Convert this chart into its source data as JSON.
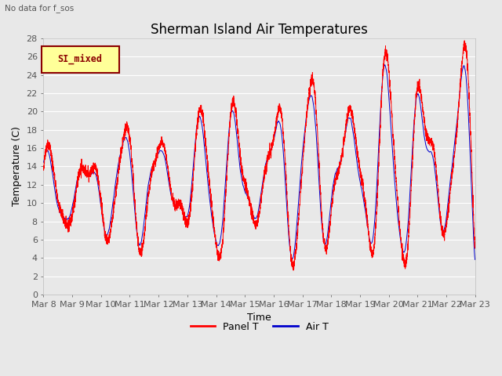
{
  "title": "Sherman Island Air Temperatures",
  "subtitle": "No data for f_sos",
  "ylabel": "Temperature (C)",
  "xlabel": "Time",
  "ylim": [
    0,
    28
  ],
  "yticks": [
    0,
    2,
    4,
    6,
    8,
    10,
    12,
    14,
    16,
    18,
    20,
    22,
    24,
    26,
    28
  ],
  "xtick_labels": [
    "Mar 8",
    "Mar 9",
    "Mar 10",
    "Mar 11",
    "Mar 12",
    "Mar 13",
    "Mar 14",
    "Mar 15",
    "Mar 16",
    "Mar 17",
    "Mar 18",
    "Mar 19",
    "Mar 20",
    "Mar 21",
    "Mar 22",
    "Mar 23"
  ],
  "panel_T_color": "#FF0000",
  "air_T_color": "#0000CC",
  "legend_label_panel": "Panel T",
  "legend_label_air": "Air T",
  "legend_box_color": "#FFFF99",
  "legend_box_edge_color": "#8B0000",
  "legend_box_text": "SI_mixed",
  "background_color": "#E8E8E8",
  "plot_bg_color": "#E8E8E8",
  "grid_color": "#FFFFFF",
  "title_fontsize": 12,
  "axis_fontsize": 9,
  "tick_fontsize": 8
}
